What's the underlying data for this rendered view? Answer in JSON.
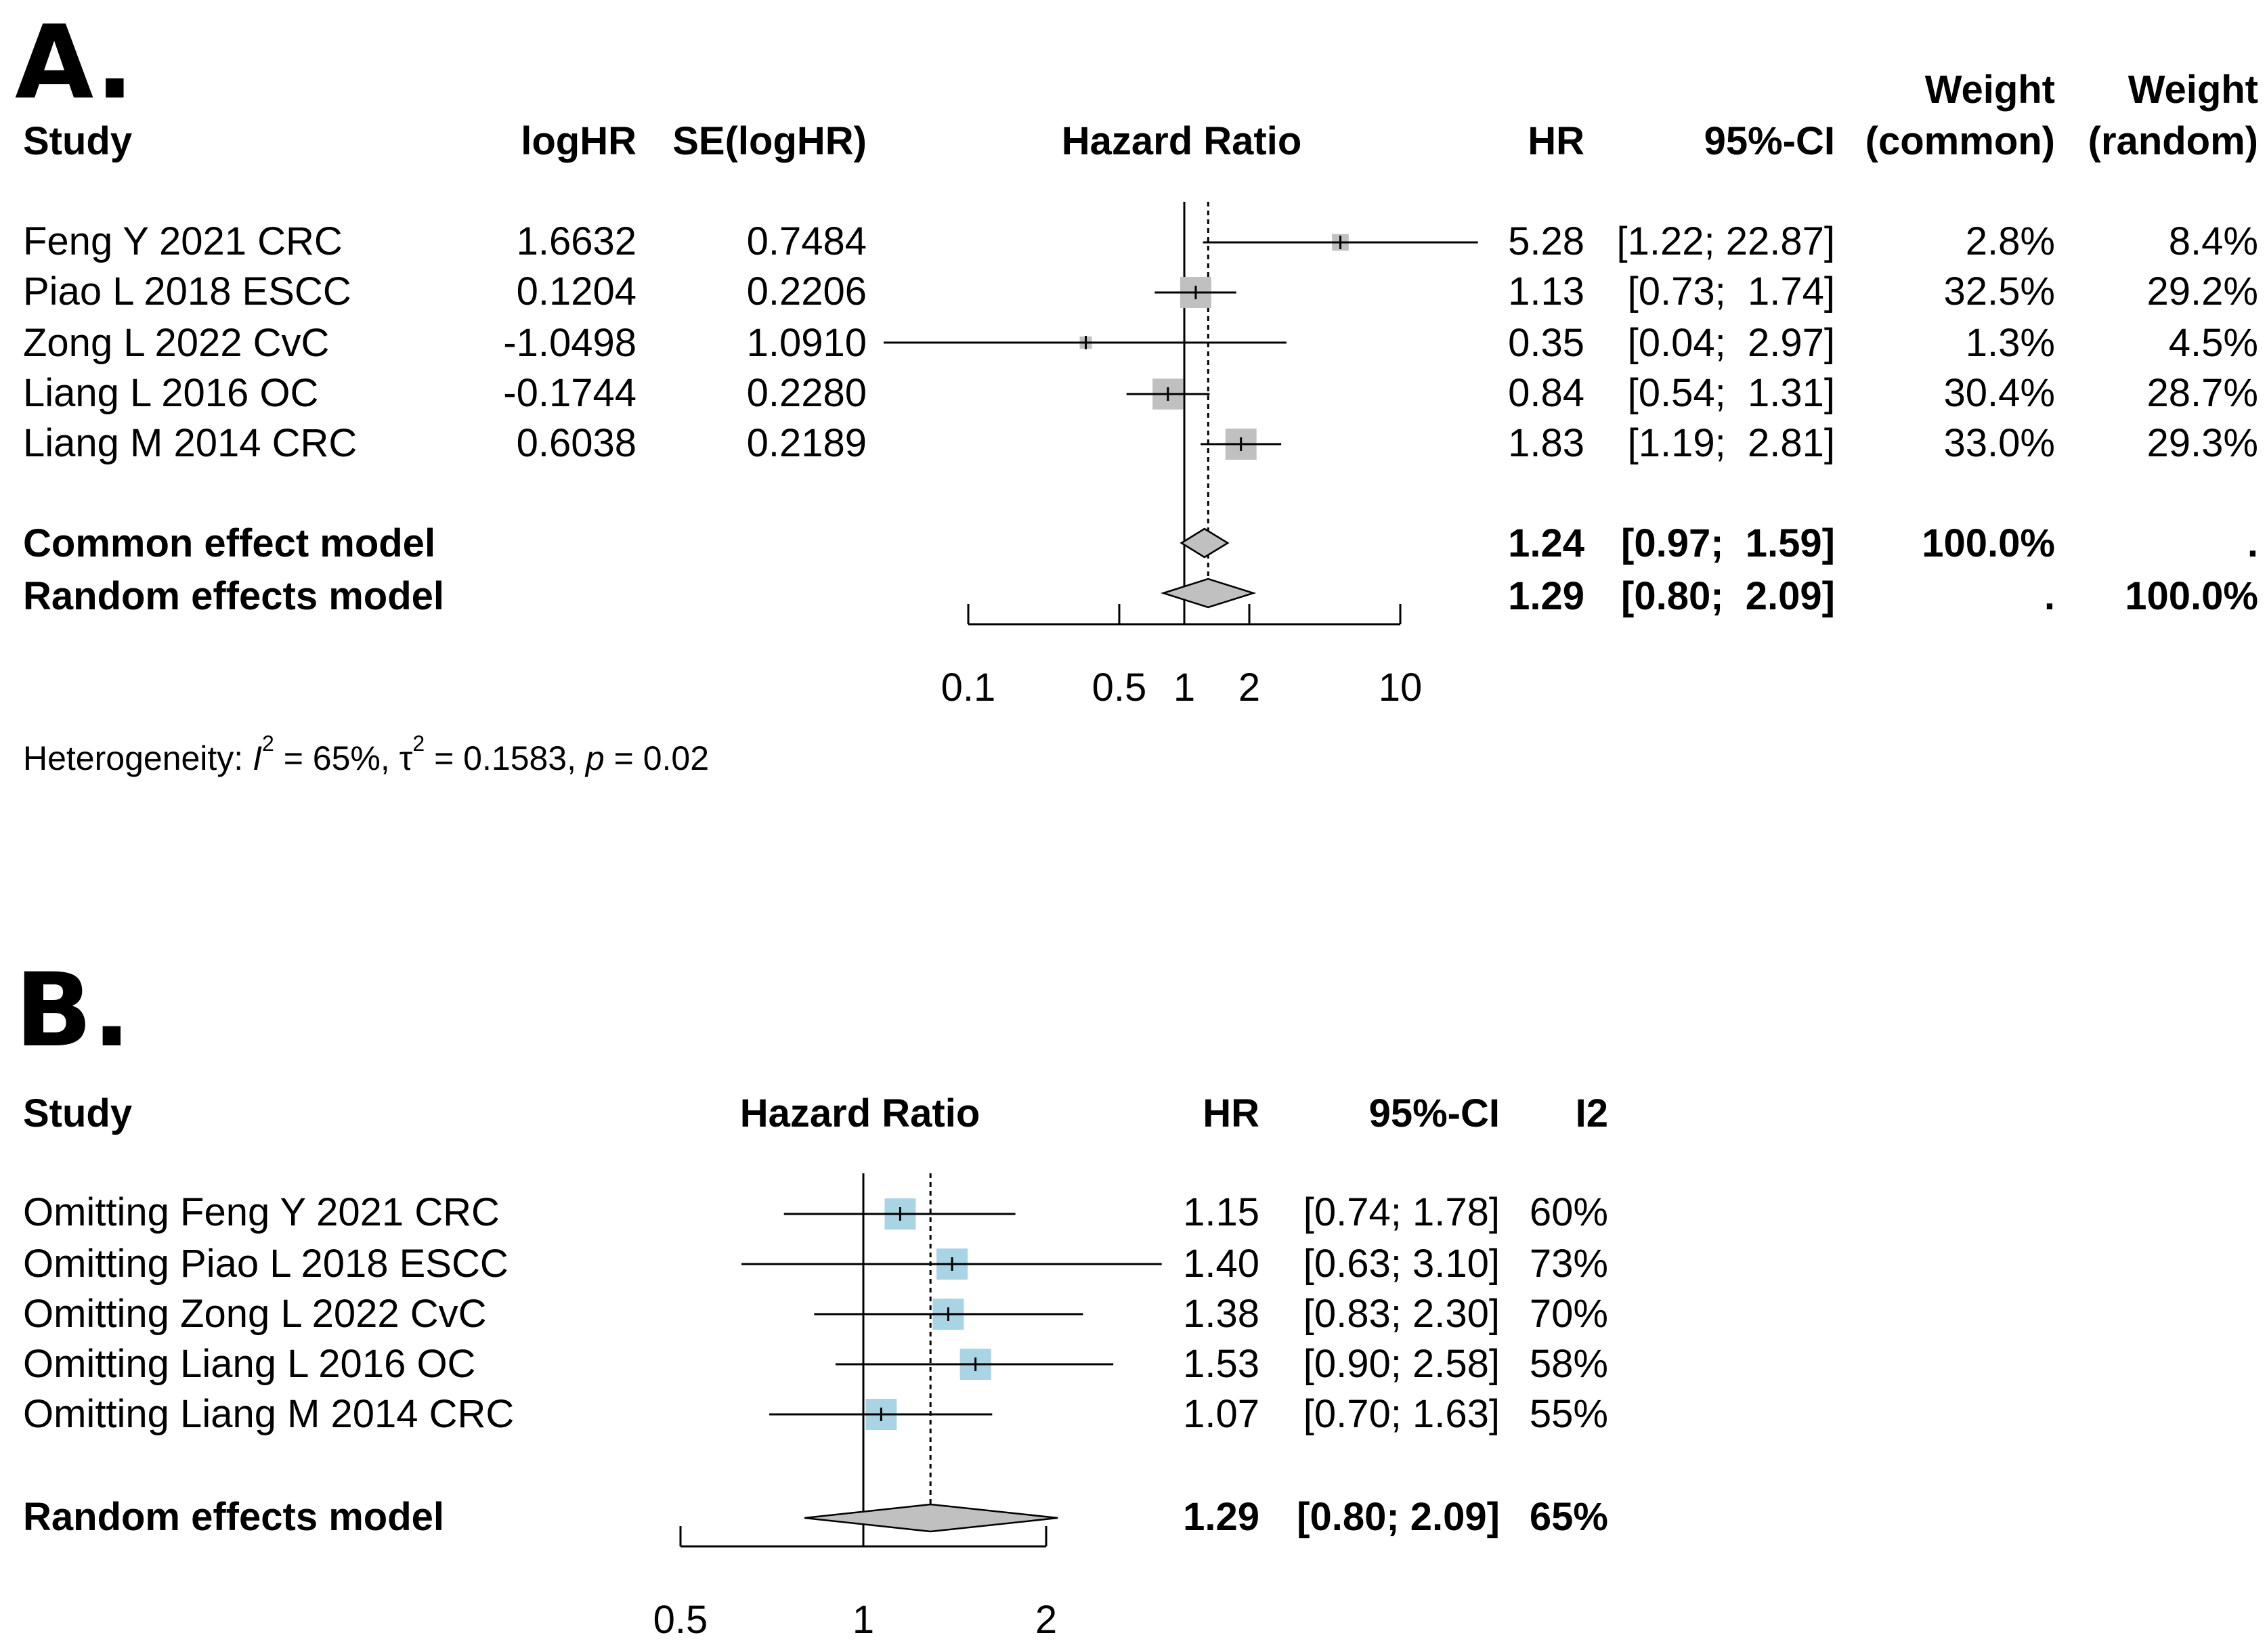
{
  "panelA": {
    "label": "A.",
    "headers": {
      "study": "Study",
      "loghr": "logHR",
      "se": "SE(logHR)",
      "plot": "Hazard Ratio",
      "hr": "HR",
      "ci": "95%-CI",
      "weight_common_1": "Weight",
      "weight_common_2": "(common)",
      "weight_random_1": "Weight",
      "weight_random_2": "(random)"
    },
    "rows": [
      {
        "study": "Feng Y 2021 CRC",
        "loghr": "1.6632",
        "se": "0.7484",
        "hr": "5.28",
        "ci": "[1.22; 22.87]",
        "w_common": "2.8%",
        "w_random": "8.4%"
      },
      {
        "study": "Piao L 2018 ESCC",
        "loghr": "0.1204",
        "se": "0.2206",
        "hr": "1.13",
        "ci": "[0.73;  1.74]",
        "w_common": "32.5%",
        "w_random": "29.2%"
      },
      {
        "study": "Zong L 2022 CvC",
        "loghr": "-1.0498",
        "se": "1.0910",
        "hr": "0.35",
        "ci": "[0.04;  2.97]",
        "w_common": "1.3%",
        "w_random": "4.5%"
      },
      {
        "study": "Liang L 2016 OC",
        "loghr": "-0.1744",
        "se": "0.2280",
        "hr": "0.84",
        "ci": "[0.54;  1.31]",
        "w_common": "30.4%",
        "w_random": "28.7%"
      },
      {
        "study": "Liang M 2014 CRC",
        "loghr": "0.6038",
        "se": "0.2189",
        "hr": "1.83",
        "ci": "[1.19;  2.81]",
        "w_common": "33.0%",
        "w_random": "29.3%"
      }
    ],
    "summaries": [
      {
        "label": "Common effect model",
        "hr": "1.24",
        "ci": "[0.97;  1.59]",
        "w_common": "100.0%",
        "w_random": "."
      },
      {
        "label": "Random effects model",
        "hr": "1.29",
        "ci": "[0.80;  2.09]",
        "w_common": ".",
        "w_random": "100.0%"
      }
    ],
    "heterogeneity": {
      "prefix": "Heterogeneity: ",
      "i2_symbol": "I",
      "i2_exp": "2",
      "i2_value": " = 65%, ",
      "tau_symbol": "τ",
      "tau_exp": "2",
      "tau_value": " = 0.1583, ",
      "p_symbol": "p",
      "p_value": " = 0.02"
    }
  },
  "panelB": {
    "label": "B.",
    "headers": {
      "study": "Study",
      "plot": "Hazard Ratio",
      "hr": "HR",
      "ci": "95%-CI",
      "i2": "I2"
    },
    "rows": [
      {
        "study": "Omitting Feng Y 2021 CRC",
        "hr": "1.15",
        "ci": "[0.74; 1.78]",
        "i2": "60%"
      },
      {
        "study": "Omitting Piao L 2018 ESCC",
        "hr": "1.40",
        "ci": "[0.63; 3.10]",
        "i2": "73%"
      },
      {
        "study": "Omitting Zong L 2022 CvC",
        "hr": "1.38",
        "ci": "[0.83; 2.30]",
        "i2": "70%"
      },
      {
        "study": "Omitting Liang L 2016 OC",
        "hr": "1.53",
        "ci": "[0.90; 2.58]",
        "i2": "58%"
      },
      {
        "study": "Omitting Liang M 2014 CRC",
        "hr": "1.07",
        "ci": "[0.70; 1.63]",
        "i2": "55%"
      }
    ],
    "summaries": [
      {
        "label": "Random effects model",
        "hr": "1.29",
        "ci": "[0.80; 2.09]",
        "i2": "65%"
      }
    ]
  },
  "chart_data": [
    {
      "type": "forest",
      "title": "A.",
      "xlabel": "Hazard Ratio",
      "scale": "log",
      "xlim": [
        0.1,
        10
      ],
      "ticks": [
        0.1,
        0.5,
        1,
        2,
        10
      ],
      "tick_labels": [
        "0.1",
        "0.5",
        "1",
        "2",
        "10"
      ],
      "reference_line": 1,
      "summary_line": 1.29,
      "box_color": "#c0c0c0",
      "diamond_color": "#c0c0c0",
      "studies": [
        {
          "name": "Feng Y 2021 CRC",
          "hr": 5.28,
          "lower": 1.22,
          "upper": 22.87,
          "weight": 8.4
        },
        {
          "name": "Piao L 2018 ESCC",
          "hr": 1.13,
          "lower": 0.73,
          "upper": 1.74,
          "weight": 29.2
        },
        {
          "name": "Zong L 2022 CvC",
          "hr": 0.35,
          "lower": 0.04,
          "upper": 2.97,
          "weight": 4.5
        },
        {
          "name": "Liang L 2016 OC",
          "hr": 0.84,
          "lower": 0.54,
          "upper": 1.31,
          "weight": 28.7
        },
        {
          "name": "Liang M 2014 CRC",
          "hr": 1.83,
          "lower": 1.19,
          "upper": 2.81,
          "weight": 29.3
        }
      ],
      "summaries": [
        {
          "name": "Common effect model",
          "hr": 1.24,
          "lower": 0.97,
          "upper": 1.59
        },
        {
          "name": "Random effects model",
          "hr": 1.29,
          "lower": 0.8,
          "upper": 2.09
        }
      ]
    },
    {
      "type": "forest",
      "title": "B.",
      "xlabel": "Hazard Ratio",
      "scale": "log",
      "xlim": [
        0.5,
        2
      ],
      "ticks": [
        0.5,
        1,
        2
      ],
      "tick_labels": [
        "0.5",
        "1",
        "2"
      ],
      "reference_line": 1,
      "summary_line": 1.29,
      "box_color": "#a9d4e4",
      "diamond_color": "#c0c0c0",
      "studies": [
        {
          "name": "Omitting Feng Y 2021 CRC",
          "hr": 1.15,
          "lower": 0.74,
          "upper": 1.78,
          "i2": 60
        },
        {
          "name": "Omitting Piao L 2018 ESCC",
          "hr": 1.4,
          "lower": 0.63,
          "upper": 3.1,
          "i2": 73
        },
        {
          "name": "Omitting Zong L 2022 CvC",
          "hr": 1.38,
          "lower": 0.83,
          "upper": 2.3,
          "i2": 70
        },
        {
          "name": "Omitting Liang L 2016 OC",
          "hr": 1.53,
          "lower": 0.9,
          "upper": 2.58,
          "i2": 58
        },
        {
          "name": "Omitting Liang M 2014 CRC",
          "hr": 1.07,
          "lower": 0.7,
          "upper": 1.63,
          "i2": 55
        }
      ],
      "summaries": [
        {
          "name": "Random effects model",
          "hr": 1.29,
          "lower": 0.8,
          "upper": 2.09
        }
      ]
    }
  ]
}
